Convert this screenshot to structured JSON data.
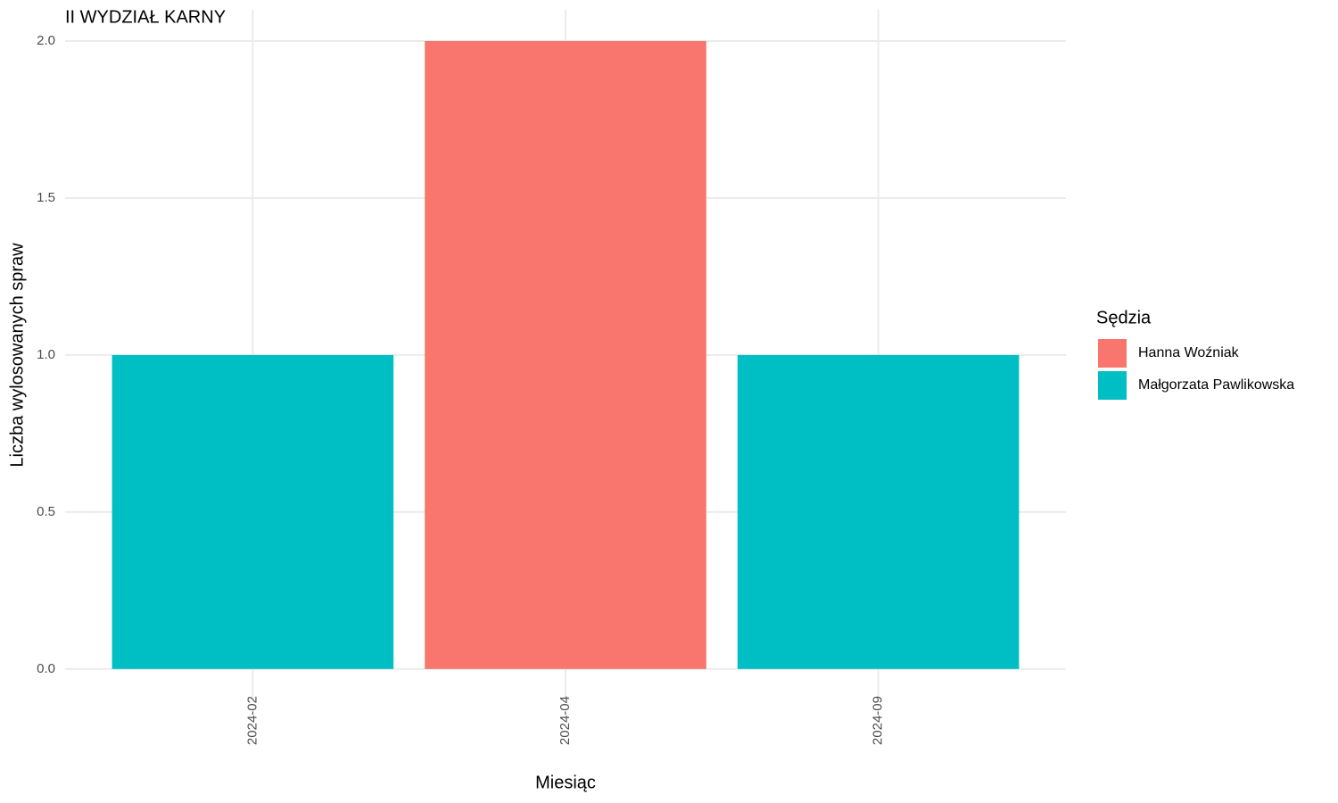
{
  "chart_data": {
    "type": "bar",
    "stacked": true,
    "title": "II WYDZIAŁ KARNY",
    "x_label": "Miesiąc",
    "y_label": "Liczba wylosowanych spraw",
    "legend_title": "Sędzia",
    "categories": [
      "2024-02",
      "2024-04",
      "2024-09"
    ],
    "series": [
      {
        "name": "Hanna Woźniak",
        "color": "#f8766d",
        "values": [
          null,
          2,
          null
        ]
      },
      {
        "name": "Małgorzata Pawlikowska",
        "color": "#00bfc4",
        "values": [
          1,
          null,
          1
        ]
      }
    ],
    "ylim": [
      -0.1,
      2.1
    ],
    "yticks": [
      {
        "value": 0,
        "label": "0.0"
      },
      {
        "value": 0.5,
        "label": "0.5"
      },
      {
        "value": 1,
        "label": "1.0"
      },
      {
        "value": 1.5,
        "label": "1.5"
      },
      {
        "value": 2,
        "label": "2.0"
      }
    ],
    "grid": true,
    "legend_position": "right"
  }
}
